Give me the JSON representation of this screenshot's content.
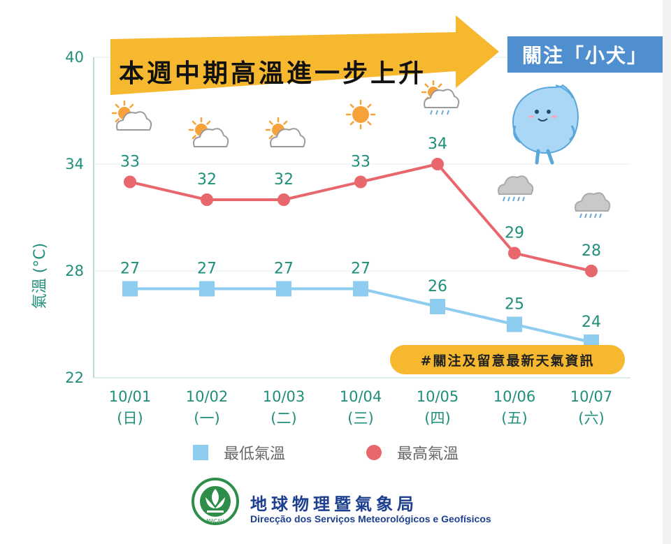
{
  "banner": {
    "title": "本週中期高溫進一步上升",
    "focus_label": "關注「小犬」"
  },
  "hashtag": "#關注及留意最新天氣資訊",
  "legend": {
    "low": "最低氣溫",
    "high": "最高氣溫"
  },
  "footer": {
    "agency_cn": "地球物理暨氣象局",
    "agency_pt": "Direcção dos Serviços Meteorológicos e Geofísicos",
    "logo_text": "MACAU"
  },
  "colors": {
    "low_series": "#8ecdf0",
    "high_series": "#e8676d",
    "axis_text": "#1f8f7a",
    "banner": "#f5b82e",
    "focus_box": "#4f8fcf"
  },
  "chart_data": {
    "type": "line",
    "ylabel": "氣溫 (°C)",
    "ylim": [
      22,
      40
    ],
    "yticks": [
      "22",
      "28",
      "34",
      "40"
    ],
    "grid": true,
    "legend_position": "bottom",
    "categories": [
      "10/01",
      "10/02",
      "10/03",
      "10/04",
      "10/05",
      "10/06",
      "10/07"
    ],
    "weekdays": [
      "(日)",
      "(一)",
      "(二)",
      "(三)",
      "(四)",
      "(五)",
      "(六)"
    ],
    "weather_icons": [
      "partly-cloudy-icon",
      "partly-cloudy-icon",
      "partly-cloudy-icon",
      "sunny-icon",
      "sun-cloud-shower-icon",
      "rain-cloud-icon",
      "rain-cloud-icon"
    ],
    "series": [
      {
        "name": "最低氣溫",
        "marker": "square",
        "values": [
          27,
          27,
          27,
          27,
          26,
          25,
          24
        ]
      },
      {
        "name": "最高氣溫",
        "marker": "circle",
        "values": [
          33,
          32,
          32,
          33,
          34,
          29,
          28
        ]
      }
    ]
  }
}
